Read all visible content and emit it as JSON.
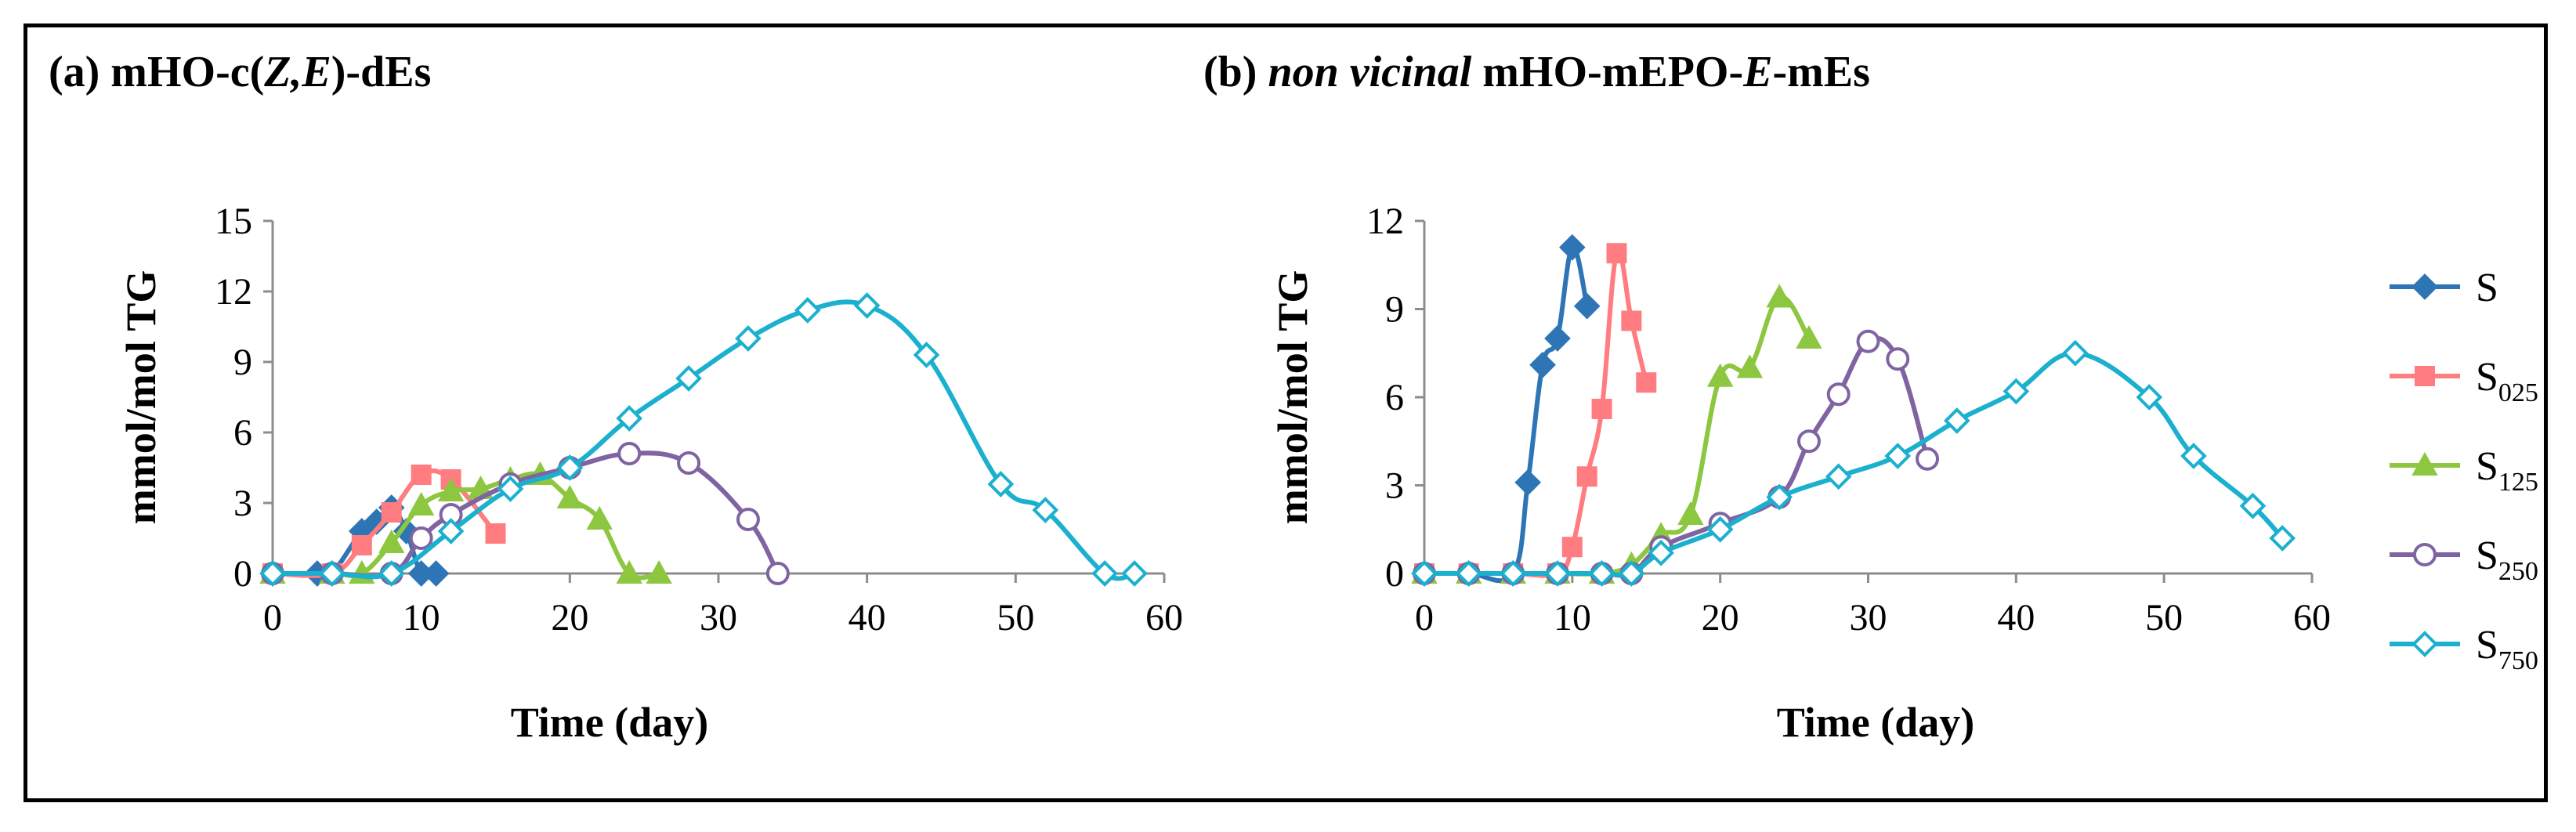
{
  "legend": [
    {
      "key": "S",
      "base": "S",
      "sub": "",
      "color": "#2E75B6",
      "marker": "diamond-filled"
    },
    {
      "key": "S025",
      "base": "S",
      "sub": "025",
      "color": "#FF7C80",
      "marker": "square-filled"
    },
    {
      "key": "S125",
      "base": "S",
      "sub": "125",
      "color": "#8DC63F",
      "marker": "triangle-filled"
    },
    {
      "key": "S250",
      "base": "S",
      "sub": "250",
      "color": "#8064A2",
      "marker": "circle-open"
    },
    {
      "key": "S750",
      "base": "S",
      "sub": "750",
      "color": "#1BB0CE",
      "marker": "diamond-open"
    }
  ],
  "chart_data": [
    {
      "type": "line",
      "title_parts": [
        "(a) mHO-c(",
        "Z,E",
        ")-dEs"
      ],
      "xlabel": "Time (day)",
      "ylabel": "mmol/mol TG",
      "xlim": [
        0,
        60
      ],
      "ylim": [
        0,
        15
      ],
      "xticks": [
        0,
        10,
        20,
        30,
        40,
        50,
        60
      ],
      "yticks": [
        0,
        3,
        6,
        9,
        12,
        15
      ],
      "series": [
        {
          "key": "S",
          "x": [
            0,
            3,
            4,
            6,
            7,
            8,
            9,
            10,
            11
          ],
          "y": [
            0,
            0,
            0,
            1.8,
            2.2,
            2.8,
            1.8,
            0,
            0
          ]
        },
        {
          "key": "S025",
          "x": [
            0,
            4,
            6,
            8,
            10,
            12,
            15
          ],
          "y": [
            0,
            0,
            1.2,
            2.6,
            4.2,
            4.0,
            1.7
          ]
        },
        {
          "key": "S125",
          "x": [
            0,
            4,
            6,
            8,
            10,
            12,
            14,
            16,
            18,
            20,
            22,
            24,
            26
          ],
          "y": [
            0,
            0,
            0,
            1.3,
            2.9,
            3.5,
            3.6,
            4.0,
            4.2,
            3.2,
            2.3,
            0,
            0
          ]
        },
        {
          "key": "S250",
          "x": [
            0,
            4,
            8,
            10,
            12,
            16,
            20,
            24,
            28,
            32,
            34
          ],
          "y": [
            0,
            0,
            0,
            1.5,
            2.5,
            3.8,
            4.5,
            5.1,
            4.7,
            2.3,
            0
          ]
        },
        {
          "key": "S750",
          "x": [
            0,
            4,
            8,
            12,
            16,
            20,
            24,
            28,
            32,
            36,
            40,
            44,
            49,
            52,
            56,
            58
          ],
          "y": [
            0,
            0,
            0,
            1.8,
            3.6,
            4.5,
            6.6,
            8.3,
            10.0,
            11.2,
            11.4,
            9.3,
            3.8,
            2.7,
            0,
            0
          ]
        }
      ]
    },
    {
      "type": "line",
      "title_parts": [
        "(b) ",
        "non vicinal",
        " mHO-mEPO-",
        "E",
        "-mEs"
      ],
      "xlabel": "Time (day)",
      "ylabel": "mmol/mol TG",
      "xlim": [
        0,
        60
      ],
      "ylim": [
        0,
        12
      ],
      "xticks": [
        0,
        10,
        20,
        30,
        40,
        50,
        60
      ],
      "yticks": [
        0,
        3,
        6,
        9,
        12
      ],
      "series": [
        {
          "key": "S",
          "x": [
            0,
            3,
            6,
            7,
            8,
            9,
            10,
            11
          ],
          "y": [
            0,
            0,
            0,
            3.1,
            7.1,
            8.0,
            11.1,
            9.1
          ]
        },
        {
          "key": "S025",
          "x": [
            0,
            3,
            6,
            9,
            10,
            11,
            12,
            13,
            14,
            15
          ],
          "y": [
            0,
            0,
            0,
            0,
            0.9,
            3.3,
            5.6,
            10.9,
            8.6,
            6.5
          ]
        },
        {
          "key": "S125",
          "x": [
            0,
            3,
            6,
            9,
            12,
            14,
            16,
            18,
            20,
            22,
            24,
            26
          ],
          "y": [
            0,
            0,
            0,
            0,
            0,
            0.3,
            1.3,
            2.0,
            6.7,
            7.0,
            9.4,
            8.0
          ]
        },
        {
          "key": "S250",
          "x": [
            0,
            3,
            6,
            9,
            12,
            14,
            16,
            20,
            24,
            26,
            28,
            30,
            32,
            34
          ],
          "y": [
            0,
            0,
            0,
            0,
            0,
            0,
            0.9,
            1.7,
            2.6,
            4.5,
            6.1,
            7.9,
            7.3,
            3.9
          ]
        },
        {
          "key": "S750",
          "x": [
            0,
            3,
            6,
            9,
            12,
            14,
            16,
            20,
            24,
            28,
            32,
            36,
            40,
            44,
            49,
            52,
            56,
            58
          ],
          "y": [
            0,
            0,
            0,
            0,
            0,
            0,
            0.7,
            1.5,
            2.6,
            3.3,
            4.0,
            5.2,
            6.2,
            7.5,
            6.0,
            4.0,
            2.3,
            1.2
          ]
        }
      ]
    }
  ]
}
